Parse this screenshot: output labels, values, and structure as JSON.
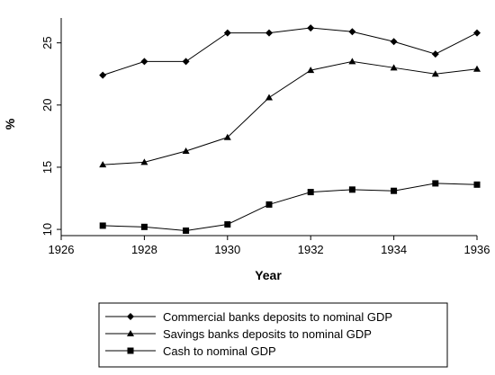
{
  "chart_data": {
    "type": "line",
    "xlabel": "Year",
    "ylabel": "%",
    "xlim": [
      1926,
      1936
    ],
    "ylim": [
      9.5,
      27
    ],
    "x_ticks": [
      1926,
      1928,
      1930,
      1932,
      1934,
      1936
    ],
    "y_ticks": [
      10,
      15,
      20,
      25
    ],
    "x": [
      1927,
      1928,
      1929,
      1930,
      1931,
      1932,
      1933,
      1934,
      1935,
      1936
    ],
    "series": [
      {
        "name": "Commercial banks deposits to nominal GDP",
        "marker": "diamond",
        "values": [
          22.4,
          23.5,
          23.5,
          25.8,
          25.8,
          26.2,
          25.9,
          25.1,
          24.1,
          25.8
        ]
      },
      {
        "name": "Savings banks deposits to nominal GDP",
        "marker": "triangle",
        "values": [
          15.2,
          15.4,
          16.3,
          17.4,
          20.6,
          22.8,
          23.5,
          23.0,
          22.5,
          22.9
        ]
      },
      {
        "name": "Cash to nominal GDP",
        "marker": "square",
        "values": [
          10.3,
          10.2,
          9.9,
          10.4,
          12.0,
          13.0,
          13.2,
          13.1,
          13.7,
          13.6
        ]
      }
    ],
    "grid": false,
    "legend_position": "bottom"
  }
}
